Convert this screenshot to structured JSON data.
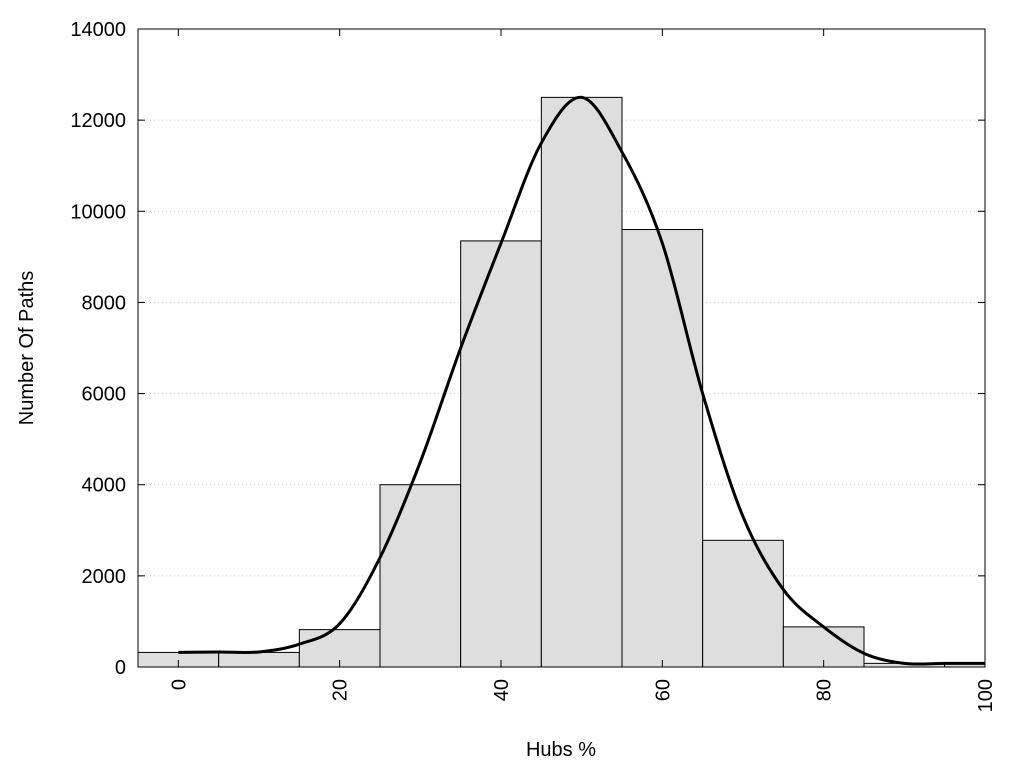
{
  "chart_data": {
    "type": "bar",
    "title": "",
    "xlabel": "Hubs %",
    "ylabel": "Number Of Paths",
    "xlim": [
      -5,
      100
    ],
    "ylim": [
      0,
      14000
    ],
    "xticks": [
      "0",
      "20",
      "40",
      "60",
      "80",
      "100"
    ],
    "yticks": [
      "0",
      "2000",
      "4000",
      "6000",
      "8000",
      "10000",
      "12000",
      "14000"
    ],
    "grid": "horizontal dotted",
    "bins": [
      {
        "x0": -5,
        "x1": 5,
        "value": 320
      },
      {
        "x0": 5,
        "x1": 15,
        "value": 320
      },
      {
        "x0": 15,
        "x1": 25,
        "value": 820
      },
      {
        "x0": 25,
        "x1": 35,
        "value": 4000
      },
      {
        "x0": 35,
        "x1": 45,
        "value": 9350
      },
      {
        "x0": 45,
        "x1": 55,
        "value": 12500
      },
      {
        "x0": 55,
        "x1": 65,
        "value": 9600
      },
      {
        "x0": 65,
        "x1": 75,
        "value": 2780
      },
      {
        "x0": 75,
        "x1": 85,
        "value": 880
      },
      {
        "x0": 85,
        "x1": 95,
        "value": 80
      },
      {
        "x0": 95,
        "x1": 100,
        "value": 80
      }
    ],
    "curve": {
      "x": [
        0,
        5,
        10,
        15,
        20,
        25,
        30,
        35,
        40,
        45,
        50,
        55,
        60,
        65,
        70,
        75,
        80,
        85,
        90,
        95,
        100
      ],
      "y": [
        320,
        330,
        330,
        500,
        950,
        2400,
        4500,
        7000,
        9300,
        11500,
        12500,
        11300,
        9300,
        6000,
        3300,
        1700,
        880,
        300,
        80,
        80,
        80
      ]
    },
    "colors": {
      "bar_fill": "#dedede",
      "bar_stroke": "#000000",
      "curve": "#000000",
      "grid": "#c8c8c8"
    }
  }
}
